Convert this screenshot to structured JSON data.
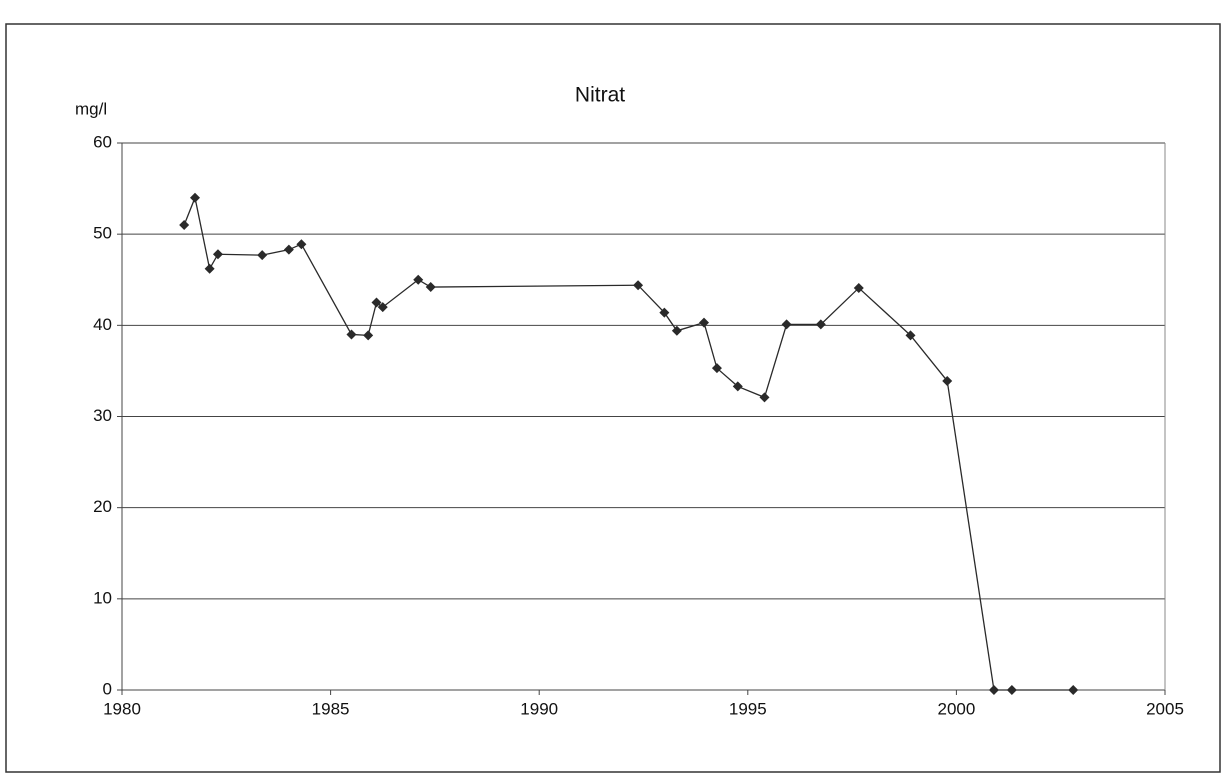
{
  "chart_data": {
    "type": "line",
    "title": "Nitrat",
    "y_label": "mg/l",
    "x": [
      1981.49,
      1981.75,
      1982.1,
      1982.3,
      1983.36,
      1984.0,
      1984.3,
      1985.5,
      1985.9,
      1986.1,
      1986.25,
      1987.1,
      1987.4,
      1992.37,
      1993.0,
      1993.3,
      1993.95,
      1994.26,
      1994.76,
      1995.4,
      1995.93,
      1996.75,
      1997.66,
      1998.9,
      1999.78,
      2000.9,
      2001.33,
      2002.8
    ],
    "series": [
      {
        "name": "Nitrat",
        "color": "#2a2a2a",
        "values": [
          51,
          54,
          46.2,
          47.8,
          47.7,
          48.3,
          48.9,
          39,
          38.9,
          42.5,
          42,
          45,
          44.2,
          44.4,
          41.4,
          39.4,
          40.3,
          35.3,
          33.3,
          32.1,
          40.1,
          40.1,
          44.1,
          38.9,
          33.9,
          0,
          0,
          0
        ]
      }
    ],
    "xlim": [
      1980,
      2005
    ],
    "xticks": [
      1980,
      1985,
      1990,
      1995,
      2000,
      2005
    ],
    "ylim": [
      0,
      60
    ],
    "yticks": [
      0,
      10,
      20,
      30,
      40,
      50,
      60
    ],
    "grid": true
  }
}
